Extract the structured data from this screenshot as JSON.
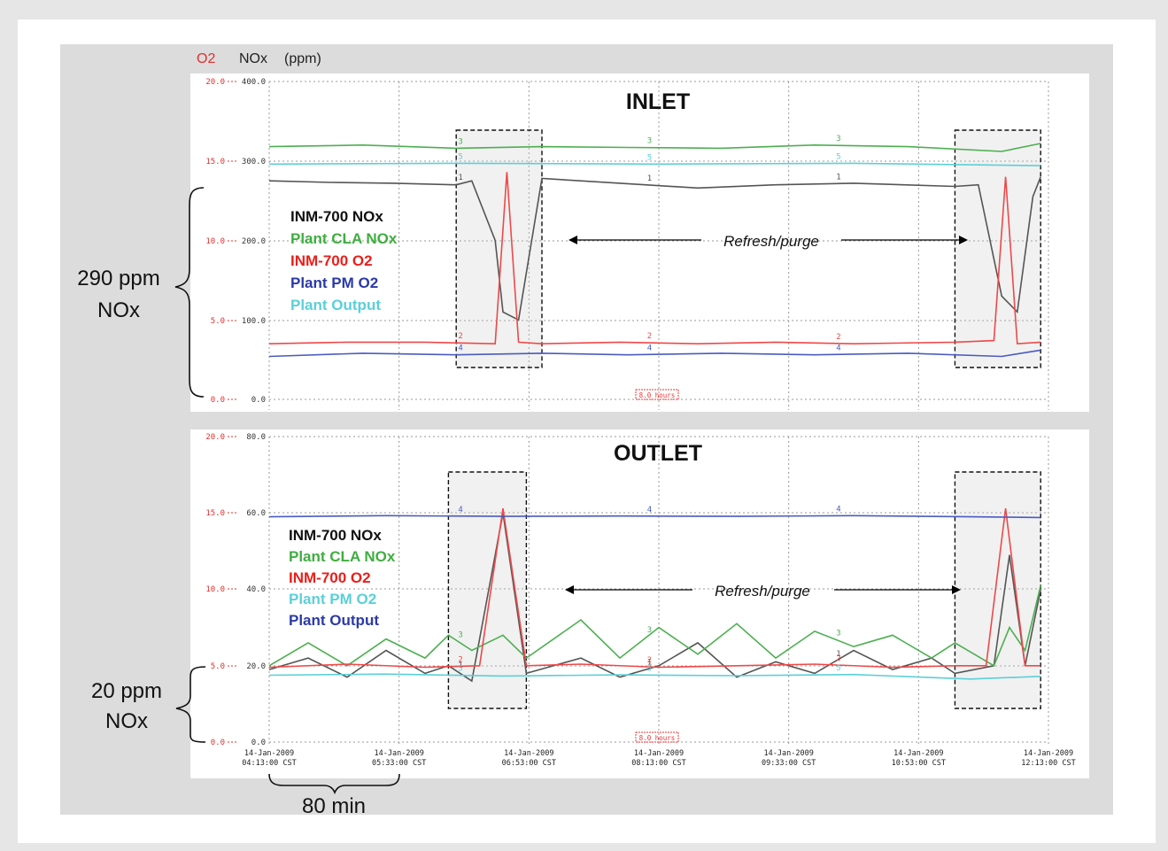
{
  "header": {
    "o2_label": "O2",
    "nox_label": "NOx",
    "unit_label": "(ppm)"
  },
  "annotations": {
    "inlet_brace_line1": "290 ppm",
    "inlet_brace_line2": "NOx",
    "outlet_brace_line1": "20 ppm",
    "outlet_brace_line2": "NOx",
    "time_brace_label": "80 min"
  },
  "colors": {
    "inm700_nox": "#555555",
    "plant_cla_nox": "#4caf50",
    "inm700_o2": "#f04848",
    "plant_pm_o2_inlet": "#4a5bc0",
    "plant_output_inlet": "#5ccfd8",
    "o2_axis": "#e0302e",
    "nox_axis": "#333333"
  },
  "chart_data": [
    {
      "type": "line",
      "title": "INLET",
      "y_o2_ticks": [
        "20.0",
        "15.0",
        "10.0",
        "5.0",
        "0.0"
      ],
      "y_nox_ticks": [
        "400.0",
        "300.0",
        "200.0",
        "100.0",
        "0.0"
      ],
      "ylim_o2": [
        0,
        20
      ],
      "ylim_nox": [
        0,
        400
      ],
      "window_label": "8.0 hours",
      "purge_label": "Refresh/purge",
      "purge_windows": [
        [
          2.4,
          3.5
        ],
        [
          8.8,
          9.9
        ]
      ],
      "legend": [
        {
          "label": "INM-700 NOx",
          "color": "#111111"
        },
        {
          "label": "Plant CLA NOx",
          "color": "#3fae3f"
        },
        {
          "label": "INM-700 O2",
          "color": "#e8201c"
        },
        {
          "label": "Plant PM O2",
          "color": "#2b3aa8"
        },
        {
          "label": "Plant Output",
          "color": "#5ccfd8"
        }
      ],
      "series": [
        {
          "name": "INM-700 NOx",
          "marker": "1",
          "axis": "nox",
          "color": "#555555",
          "x": [
            0,
            0.8,
            1.6,
            2.4,
            2.6,
            2.9,
            3.0,
            3.2,
            3.5,
            4.5,
            5.5,
            6.5,
            7.5,
            8.8,
            9.1,
            9.4,
            9.6,
            9.8,
            9.9
          ],
          "values": [
            275,
            273,
            272,
            270,
            275,
            200,
            110,
            100,
            278,
            272,
            266,
            270,
            272,
            268,
            270,
            130,
            110,
            255,
            280
          ]
        },
        {
          "name": "Plant CLA NOx",
          "marker": "3",
          "axis": "nox",
          "color": "#4caf50",
          "x": [
            0,
            1.2,
            2.4,
            3.5,
            4.6,
            5.8,
            7.0,
            8.2,
            9.4,
            9.9
          ],
          "values": [
            318,
            320,
            316,
            318,
            317,
            316,
            320,
            318,
            312,
            322
          ]
        },
        {
          "name": "INM-700 O2",
          "marker": "2",
          "axis": "o2",
          "color": "#f04848",
          "x": [
            0,
            1.0,
            2.0,
            2.9,
            3.05,
            3.2,
            3.5,
            4.5,
            5.5,
            6.5,
            7.5,
            8.8,
            9.3,
            9.45,
            9.6,
            9.9
          ],
          "values": [
            3.5,
            3.6,
            3.6,
            3.5,
            14.3,
            3.6,
            3.5,
            3.6,
            3.5,
            3.6,
            3.5,
            3.6,
            3.7,
            14.0,
            3.5,
            3.6
          ]
        },
        {
          "name": "Plant PM O2",
          "marker": "4",
          "axis": "o2",
          "color": "#4a5bc0",
          "x": [
            0,
            1.2,
            2.4,
            3.5,
            4.6,
            5.8,
            7.0,
            8.2,
            9.4,
            9.9
          ],
          "values": [
            2.7,
            2.9,
            2.8,
            2.9,
            2.8,
            2.9,
            2.8,
            2.9,
            2.7,
            3.1
          ]
        },
        {
          "name": "Plant Output",
          "marker": "5",
          "axis": "nox",
          "color": "#5ccfd8",
          "x": [
            0,
            2.5,
            5.0,
            7.5,
            9.9
          ],
          "values": [
            296,
            297,
            296,
            297,
            294
          ]
        }
      ]
    },
    {
      "type": "line",
      "title": "OUTLET",
      "y_o2_ticks": [
        "20.0",
        "15.0",
        "10.0",
        "5.0",
        "0.0"
      ],
      "y_nox_ticks": [
        "80.0",
        "60.0",
        "40.0",
        "20.0",
        "0.0"
      ],
      "ylim_o2": [
        0,
        20
      ],
      "ylim_nox": [
        0,
        80
      ],
      "window_label": "8.0 hours",
      "purge_label": "Refresh/purge",
      "purge_windows": [
        [
          2.3,
          3.3
        ],
        [
          8.8,
          9.9
        ]
      ],
      "x_tick_dates": [
        "14-Jan-2009",
        "14-Jan-2009",
        "14-Jan-2009",
        "14-Jan-2009",
        "14-Jan-2009",
        "14-Jan-2009",
        "14-Jan-2009"
      ],
      "x_tick_times": [
        "04:13:00 CST",
        "05:33:00 CST",
        "06:53:00 CST",
        "08:13:00 CST",
        "09:33:00 CST",
        "10:53:00 CST",
        "12:13:00 CST"
      ],
      "legend": [
        {
          "label": "INM-700 NOx",
          "color": "#111111"
        },
        {
          "label": "Plant CLA NOx",
          "color": "#3fae3f"
        },
        {
          "label": "INM-700 O2",
          "color": "#e8201c"
        },
        {
          "label": "Plant PM O2",
          "color": "#5ccfd8"
        },
        {
          "label": "Plant Output",
          "color": "#2b3aa8"
        }
      ],
      "series": [
        {
          "name": "INM-700 NOx",
          "marker": "1",
          "axis": "nox",
          "color": "#555555",
          "x": [
            0,
            0.5,
            1.0,
            1.5,
            2.0,
            2.3,
            2.6,
            3.0,
            3.3,
            4.0,
            4.5,
            5.0,
            5.5,
            6.0,
            6.5,
            7.0,
            7.5,
            8.0,
            8.5,
            8.8,
            9.3,
            9.5,
            9.7,
            9.9
          ],
          "values": [
            19,
            22,
            17,
            24,
            18,
            20,
            16,
            60,
            18,
            22,
            17,
            20,
            26,
            17,
            21,
            18,
            24,
            19,
            22,
            18,
            20,
            49,
            20,
            40
          ]
        },
        {
          "name": "Plant CLA NOx",
          "marker": "3",
          "axis": "nox",
          "color": "#4caf50",
          "x": [
            0,
            0.5,
            1.0,
            1.5,
            2.0,
            2.3,
            2.6,
            3.0,
            3.3,
            4.0,
            4.5,
            5.0,
            5.5,
            6.0,
            6.5,
            7.0,
            7.5,
            8.0,
            8.5,
            8.8,
            9.3,
            9.5,
            9.7,
            9.9
          ],
          "values": [
            20,
            26,
            20,
            27,
            22,
            28,
            24,
            28,
            22,
            32,
            22,
            30,
            23,
            31,
            22,
            29,
            25,
            28,
            22,
            26,
            20,
            30,
            24,
            41
          ]
        },
        {
          "name": "INM-700 O2",
          "marker": "2",
          "axis": "o2",
          "color": "#f04848",
          "x": [
            0,
            1.0,
            2.0,
            2.7,
            3.0,
            3.3,
            4.0,
            5.0,
            6.0,
            7.0,
            8.0,
            8.8,
            9.2,
            9.45,
            9.7,
            9.9
          ],
          "values": [
            4.9,
            5.1,
            4.9,
            5.0,
            15.3,
            5.0,
            5.1,
            4.9,
            5.0,
            5.1,
            4.9,
            5.0,
            5.0,
            15.3,
            5.0,
            5.0
          ]
        },
        {
          "name": "Plant PM O2",
          "marker": "5",
          "axis": "nox",
          "color": "#5ccfd8",
          "x": [
            0,
            1.5,
            3.0,
            4.5,
            6.0,
            7.5,
            9.0,
            9.9
          ],
          "values": [
            17.5,
            17.8,
            17.3,
            17.6,
            17.4,
            17.7,
            16.5,
            17.2
          ]
        },
        {
          "name": "Plant Output",
          "marker": "4",
          "axis": "nox",
          "color": "#4a5bc0",
          "x": [
            0,
            1.5,
            3.0,
            4.5,
            6.0,
            7.5,
            9.0,
            9.9
          ],
          "values": [
            59,
            59.3,
            59.1,
            59.2,
            59.1,
            59.3,
            59.0,
            58.8
          ]
        }
      ]
    }
  ]
}
